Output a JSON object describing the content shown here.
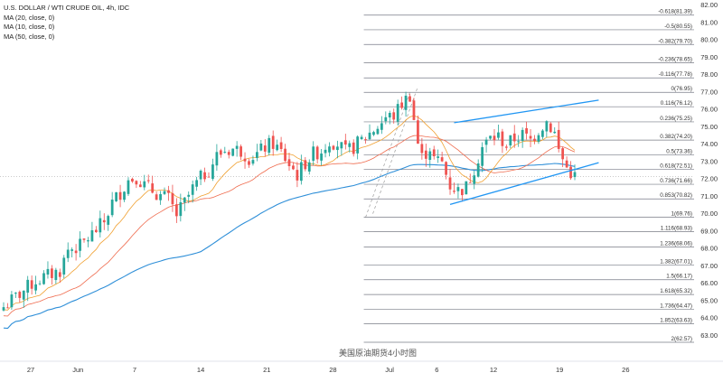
{
  "header": {
    "title": "U.S. DOLLAR / WTI CRUDE OIL, 4h, IDC",
    "indicators": [
      "MA (20, close, 0)",
      "MA (10, close, 0)",
      "MA (50, close, 0)"
    ]
  },
  "watermark": "美国原油期货4小时图",
  "colors": {
    "up": "#26a69a",
    "down": "#ef5350",
    "ma_fast": "#ef6c4f",
    "ma_mid": "#f0a030",
    "ma_slow": "#2f8fd8",
    "fib": "#787b86",
    "channel": "#2196f3",
    "axis_text": "#333333"
  },
  "chart_data": {
    "type": "candlestick",
    "title": "U.S. DOLLAR / WTI CRUDE OIL, 4h, IDC",
    "ylim": [
      62.0,
      82.0
    ],
    "y_ticks": [
      "63.00",
      "64.00",
      "65.00",
      "66.00",
      "67.00",
      "68.00",
      "69.00",
      "70.00",
      "71.00",
      "72.00",
      "73.00",
      "74.00",
      "75.00",
      "76.00",
      "77.00",
      "78.00",
      "79.00",
      "80.00",
      "81.00",
      "82.00"
    ],
    "x_ticks": [
      "27",
      "Jun",
      "7",
      "14",
      "21",
      "28",
      "Jul",
      "6",
      "12",
      "19",
      "26"
    ],
    "x_tick_day_index": [
      0,
      5,
      11,
      18,
      25,
      32,
      38,
      43,
      49,
      56,
      63
    ],
    "last_price": "72.10",
    "price_path": [
      [
        0,
        66.1
      ],
      [
        3,
        66.4
      ],
      [
        6,
        66.7
      ],
      [
        8,
        67.9
      ],
      [
        11,
        68.1
      ],
      [
        14,
        68.8
      ],
      [
        17,
        69.5
      ],
      [
        19,
        70.6
      ],
      [
        21,
        71.2
      ],
      [
        23,
        71.9
      ],
      [
        25,
        72.1
      ],
      [
        27,
        71.6
      ],
      [
        29,
        71.3
      ],
      [
        31,
        71.0
      ],
      [
        33,
        70.8
      ],
      [
        35,
        69.9
      ],
      [
        37,
        70.6
      ],
      [
        39,
        71.4
      ],
      [
        41,
        72.0
      ],
      [
        43,
        72.5
      ],
      [
        45,
        73.3
      ],
      [
        47,
        73.6
      ],
      [
        49,
        73.7
      ],
      [
        51,
        73.6
      ],
      [
        53,
        73.2
      ],
      [
        55,
        73.4
      ],
      [
        57,
        73.8
      ],
      [
        59,
        74.0
      ],
      [
        61,
        73.5
      ],
      [
        63,
        72.8
      ],
      [
        65,
        72.2
      ],
      [
        67,
        72.9
      ],
      [
        69,
        73.4
      ],
      [
        71,
        73.6
      ],
      [
        73,
        74.2
      ],
      [
        75,
        74.0
      ],
      [
        77,
        73.5
      ],
      [
        79,
        73.8
      ],
      [
        81,
        74.2
      ],
      [
        83,
        74.6
      ],
      [
        85,
        75.0
      ],
      [
        87,
        75.5
      ],
      [
        89,
        75.6
      ],
      [
        91,
        76.3
      ],
      [
        93,
        76.8
      ],
      [
        95,
        74.0
      ],
      [
        96,
        73.2
      ],
      [
        98,
        73.8
      ],
      [
        99,
        73.1
      ],
      [
        101,
        72.9
      ],
      [
        103,
        71.6
      ],
      [
        105,
        71.3
      ],
      [
        107,
        71.5
      ],
      [
        109,
        72.6
      ],
      [
        111,
        73.8
      ],
      [
        113,
        74.3
      ],
      [
        115,
        74.4
      ],
      [
        117,
        73.9
      ],
      [
        119,
        74.3
      ],
      [
        121,
        74.5
      ],
      [
        123,
        74.2
      ],
      [
        125,
        74.8
      ],
      [
        127,
        75.3
      ],
      [
        129,
        74.6
      ],
      [
        130,
        73.6
      ],
      [
        132,
        72.6
      ],
      [
        134,
        72.1
      ]
    ],
    "ma_periods": [
      10,
      20,
      50
    ],
    "fibonacci": [
      {
        "label": "-0.618(81.39)",
        "value": 81.39
      },
      {
        "label": "-0.5(80.55)",
        "value": 80.55
      },
      {
        "label": "-0.382(79.70)",
        "value": 79.7
      },
      {
        "label": "-0.236(78.65)",
        "value": 78.65
      },
      {
        "label": "-0.116(77.78)",
        "value": 77.78
      },
      {
        "label": "0(76.95)",
        "value": 76.95
      },
      {
        "label": "0.116(76.12)",
        "value": 76.12
      },
      {
        "label": "0.236(75.25)",
        "value": 75.25
      },
      {
        "label": "0.382(74.20)",
        "value": 74.2
      },
      {
        "label": "0.5(73.36)",
        "value": 73.36
      },
      {
        "label": "0.618(72.51)",
        "value": 72.51
      },
      {
        "label": "0.736(71.66)",
        "value": 71.66
      },
      {
        "label": "0.853(70.82)",
        "value": 70.82
      },
      {
        "label": "1(69.76)",
        "value": 69.76
      },
      {
        "label": "1.116(68.93)",
        "value": 68.93
      },
      {
        "label": "1.236(68.06)",
        "value": 68.06
      },
      {
        "label": "1.382(67.01)",
        "value": 67.01
      },
      {
        "label": "1.5(66.17)",
        "value": 66.17
      },
      {
        "label": "1.618(65.32)",
        "value": 65.32
      },
      {
        "label": "1.736(64.47)",
        "value": 64.47
      },
      {
        "label": "1.852(63.63)",
        "value": 63.63
      },
      {
        "label": "2(62.57)",
        "value": 62.57
      }
    ],
    "fib_start_bar": 82,
    "fib_swing": {
      "from": [
        82,
        69.76
      ],
      "to": [
        93,
        76.95
      ]
    },
    "channel": {
      "upper": {
        "from": [
          104,
          75.2
        ],
        "to": [
          135,
          76.5
        ]
      },
      "lower": {
        "from": [
          103,
          70.5
        ],
        "to": [
          135,
          72.9
        ]
      }
    },
    "grid": false
  }
}
